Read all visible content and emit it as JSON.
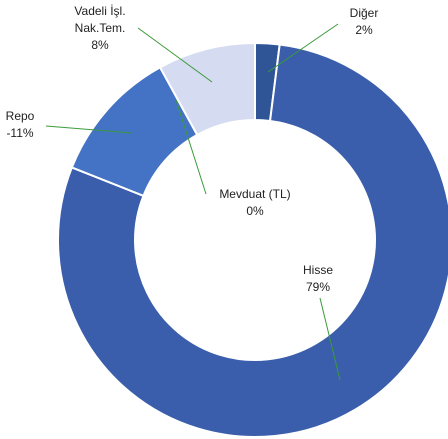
{
  "chart_data": {
    "type": "donut",
    "categories": [
      "Diğer",
      "Hisse",
      "Mevduat (TL)",
      "Repo",
      "Vadeli İşl. Nak.Tem."
    ],
    "values": [
      2,
      79,
      0,
      -11,
      8
    ],
    "value_labels": [
      "2%",
      "79%",
      "0%",
      "-11%",
      "8%"
    ],
    "colors": [
      "#2f5597",
      "#3a5eab",
      "#4f7fd0",
      "#4472c4",
      "#d5dbf0"
    ]
  }
}
